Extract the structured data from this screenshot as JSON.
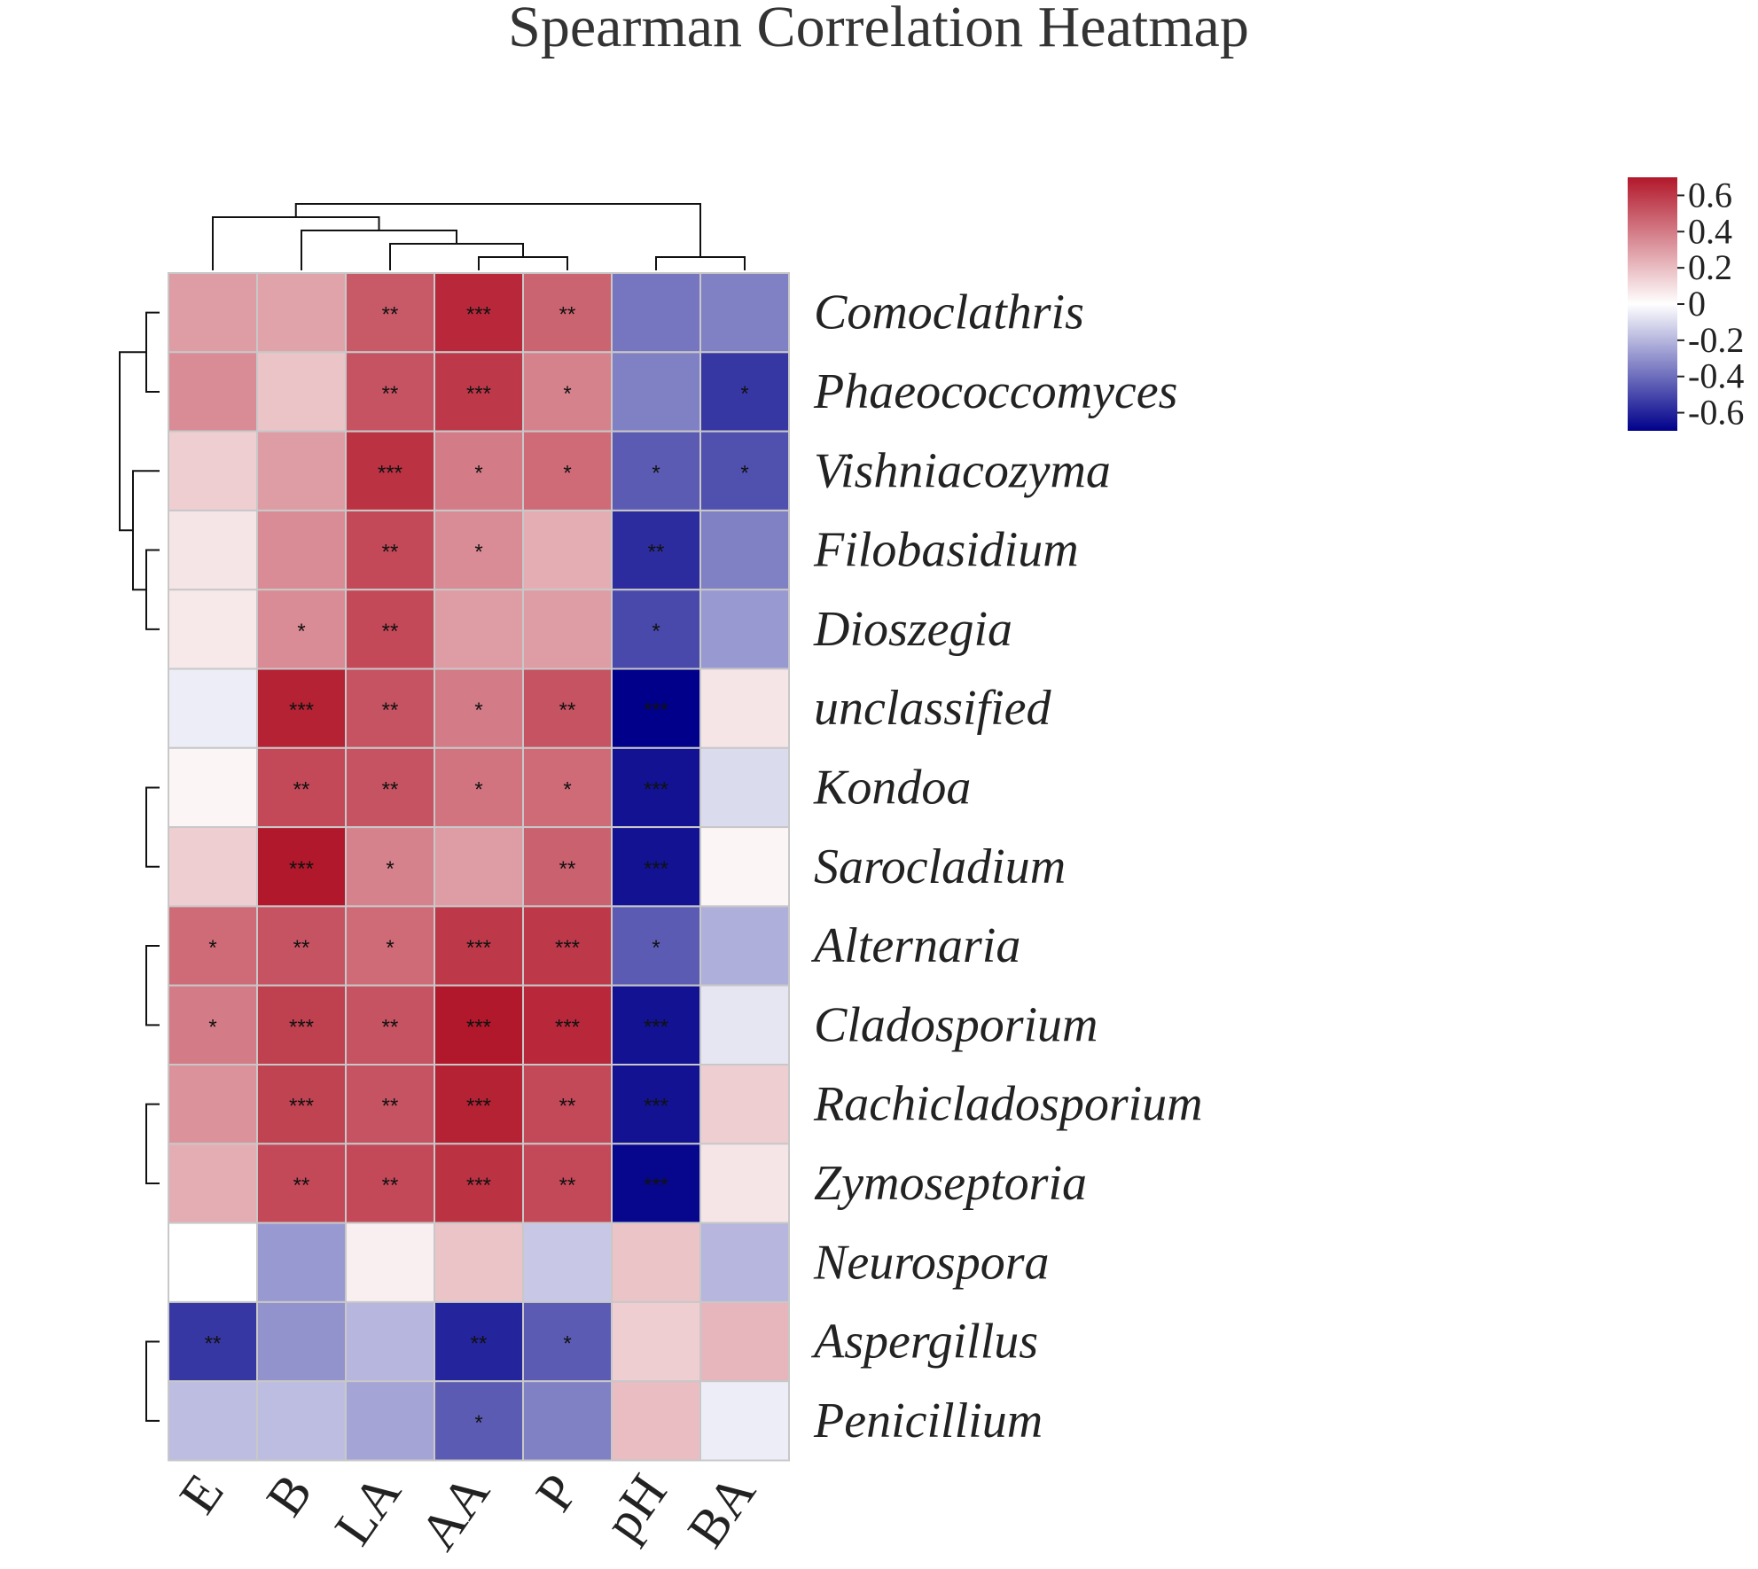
{
  "chart_data": {
    "type": "heatmap",
    "title": "Spearman Correlation Heatmap",
    "columns": [
      "E",
      "B",
      "LA",
      "AA",
      "P",
      "pH",
      "BA"
    ],
    "rows": [
      "Comoclathris",
      "Phaeococcomyces",
      "Vishniacozyma",
      "Filobasidium",
      "Dioszegia",
      "unclassified",
      "Kondoa",
      "Sarocladium",
      "Alternaria",
      "Cladosporium",
      "Rachicladosporium",
      "Zymoseptoria",
      "Neurospora",
      "Aspergillus",
      "Penicillium"
    ],
    "values": [
      [
        0.3,
        0.28,
        0.5,
        0.65,
        0.47,
        -0.38,
        -0.35
      ],
      [
        0.35,
        0.18,
        0.52,
        0.6,
        0.38,
        -0.35,
        -0.55
      ],
      [
        0.15,
        0.3,
        0.62,
        0.4,
        0.45,
        -0.45,
        -0.48
      ],
      [
        0.08,
        0.35,
        0.55,
        0.35,
        0.25,
        -0.58,
        -0.35
      ],
      [
        0.07,
        0.35,
        0.55,
        0.3,
        0.3,
        -0.5,
        -0.28
      ],
      [
        -0.05,
        0.67,
        0.52,
        0.4,
        0.52,
        -0.7,
        0.08
      ],
      [
        0.03,
        0.55,
        0.52,
        0.42,
        0.45,
        -0.65,
        -0.1
      ],
      [
        0.15,
        0.7,
        0.38,
        0.3,
        0.48,
        -0.65,
        0.03
      ],
      [
        0.45,
        0.52,
        0.45,
        0.6,
        0.6,
        -0.45,
        -0.22
      ],
      [
        0.4,
        0.58,
        0.52,
        0.72,
        0.65,
        -0.65,
        -0.07
      ],
      [
        0.33,
        0.57,
        0.52,
        0.67,
        0.55,
        -0.65,
        0.15
      ],
      [
        0.25,
        0.55,
        0.55,
        0.62,
        0.55,
        -0.68,
        0.08
      ],
      [
        0.0,
        -0.28,
        0.05,
        0.18,
        -0.15,
        0.18,
        -0.2
      ],
      [
        -0.55,
        -0.3,
        -0.2,
        -0.6,
        -0.45,
        0.15,
        0.22
      ],
      [
        -0.18,
        -0.18,
        -0.25,
        -0.45,
        -0.35,
        0.2,
        -0.05
      ]
    ],
    "significance": [
      [
        "",
        "",
        "**",
        "***",
        "**",
        "",
        ""
      ],
      [
        "",
        "",
        "**",
        "***",
        "*",
        "",
        "*"
      ],
      [
        "",
        "",
        "***",
        "*",
        "*",
        "*",
        "*"
      ],
      [
        "",
        "",
        "**",
        "*",
        "",
        "**",
        ""
      ],
      [
        "",
        "*",
        "**",
        "",
        "",
        "*",
        ""
      ],
      [
        "",
        "***",
        "**",
        "*",
        "**",
        "***",
        ""
      ],
      [
        "",
        "**",
        "**",
        "*",
        "*",
        "***",
        ""
      ],
      [
        "",
        "***",
        "*",
        "",
        "**",
        "***",
        ""
      ],
      [
        "*",
        "**",
        "*",
        "***",
        "***",
        "*",
        ""
      ],
      [
        "*",
        "***",
        "**",
        "***",
        "***",
        "***",
        ""
      ],
      [
        "",
        "***",
        "**",
        "***",
        "**",
        "***",
        ""
      ],
      [
        "",
        "**",
        "**",
        "***",
        "**",
        "***",
        ""
      ],
      [
        "",
        "",
        "",
        "",
        "",
        "",
        ""
      ],
      [
        "**",
        "",
        "",
        "**",
        "*",
        "",
        ""
      ],
      [
        "",
        "",
        "",
        "*",
        "",
        "",
        ""
      ]
    ],
    "color_range": [
      -0.7,
      0.7
    ],
    "color_scale": {
      "low": "#00008B",
      "mid": "#FFFFFF",
      "high": "#B2182B"
    },
    "legend": {
      "position": "top-right",
      "ticks": [
        0.6,
        0.4,
        0.2,
        0,
        -0.2,
        -0.4,
        -0.6
      ],
      "tick_labels": [
        "0.6",
        "0.4",
        "0.2",
        "0",
        "-0.2",
        "-0.4",
        "-0.6"
      ]
    },
    "cluster": {
      "rows": [
        [
          0,
          1
        ],
        [
          3,
          4
        ],
        [
          2,
          16
        ],
        [
          15,
          17
        ],
        [
          18,
          19
        ],
        [
          6,
          7
        ],
        [
          8,
          9
        ],
        [
          10,
          11
        ],
        [
          24,
          25
        ],
        [
          22,
          26
        ],
        [
          21,
          27
        ],
        [
          13,
          14
        ],
        [
          12,
          29
        ],
        [
          20,
          28
        ],
        [
          30,
          31
        ]
      ],
      "cols": [
        [
          3,
          4
        ],
        [
          2,
          7
        ],
        [
          1,
          8
        ],
        [
          0,
          9
        ],
        [
          5,
          6
        ],
        [
          10,
          11
        ]
      ]
    }
  }
}
